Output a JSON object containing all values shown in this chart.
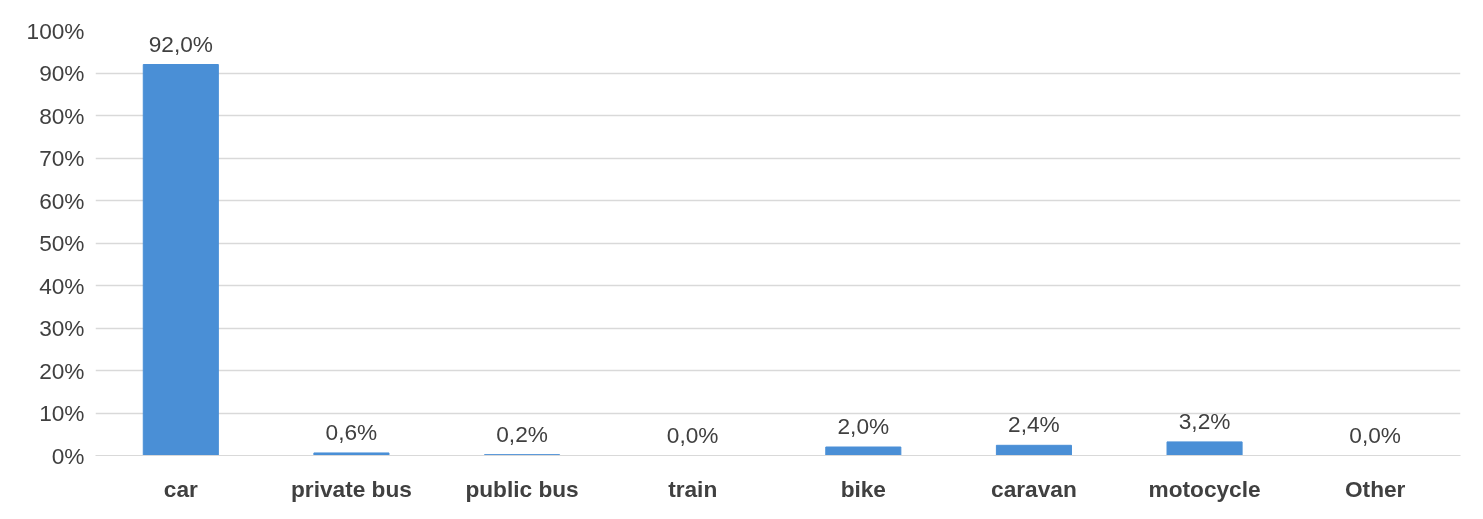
{
  "chart_data": {
    "type": "bar",
    "categories": [
      "car",
      "private bus",
      "public bus",
      "train",
      "bike",
      "caravan",
      "motocycle",
      "Other"
    ],
    "values": [
      92.0,
      0.6,
      0.2,
      0.0,
      2.0,
      2.4,
      3.2,
      0.0
    ],
    "value_labels": [
      "92,0%",
      "0,6%",
      "0,2%",
      "0,0%",
      "2,0%",
      "2,4%",
      "3,2%",
      "0,0%"
    ],
    "color": "#4a8fd6",
    "ylim": [
      0,
      100
    ],
    "yticks": [
      {
        "value": 0,
        "label": "0%"
      },
      {
        "value": 10,
        "label": "10%"
      },
      {
        "value": 20,
        "label": "20%"
      },
      {
        "value": 30,
        "label": "30%"
      },
      {
        "value": 40,
        "label": "40%"
      },
      {
        "value": 50,
        "label": "50%"
      },
      {
        "value": 60,
        "label": "60%"
      },
      {
        "value": 70,
        "label": "70%"
      },
      {
        "value": 80,
        "label": "80%"
      },
      {
        "value": 90,
        "label": "90%"
      },
      {
        "value": 100,
        "label": "100%"
      }
    ],
    "grid": "y"
  }
}
